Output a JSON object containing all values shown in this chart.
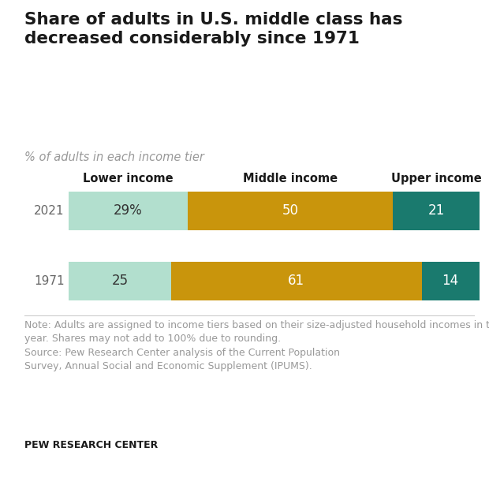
{
  "title": "Share of adults in U.S. middle class has\ndecreased considerably since 1971",
  "subtitle": "% of adults in each income tier",
  "years": [
    "2021",
    "1971"
  ],
  "categories": [
    "Lower income",
    "Middle income",
    "Upper income"
  ],
  "values": {
    "2021": [
      29,
      50,
      21
    ],
    "1971": [
      25,
      61,
      14
    ]
  },
  "labels": {
    "2021": [
      "29%",
      "50",
      "21"
    ],
    "1971": [
      "25",
      "61",
      "14"
    ]
  },
  "colors": [
    "#b2dfce",
    "#c9950c",
    "#1a7a6e"
  ],
  "note_line1": "Note: Adults are assigned to income tiers based on their size-adjusted household incomes in the calendar year prior to the survey",
  "note_line2": "year. Shares may not add to 100% due to rounding.",
  "note_line3": "Source: Pew Research Center analysis of the Current Population",
  "note_line4": "Survey, Annual Social and Economic Supplement (IPUMS).",
  "source_label": "PEW RESEARCH CENTER",
  "background_color": "#ffffff",
  "title_color": "#1a1a1a",
  "subtitle_color": "#999999",
  "note_color": "#999999",
  "bar_label_color_lower": "#333333",
  "bar_label_color_dark": "#ffffff",
  "year_label_color": "#666666",
  "header_color": "#1a1a1a"
}
